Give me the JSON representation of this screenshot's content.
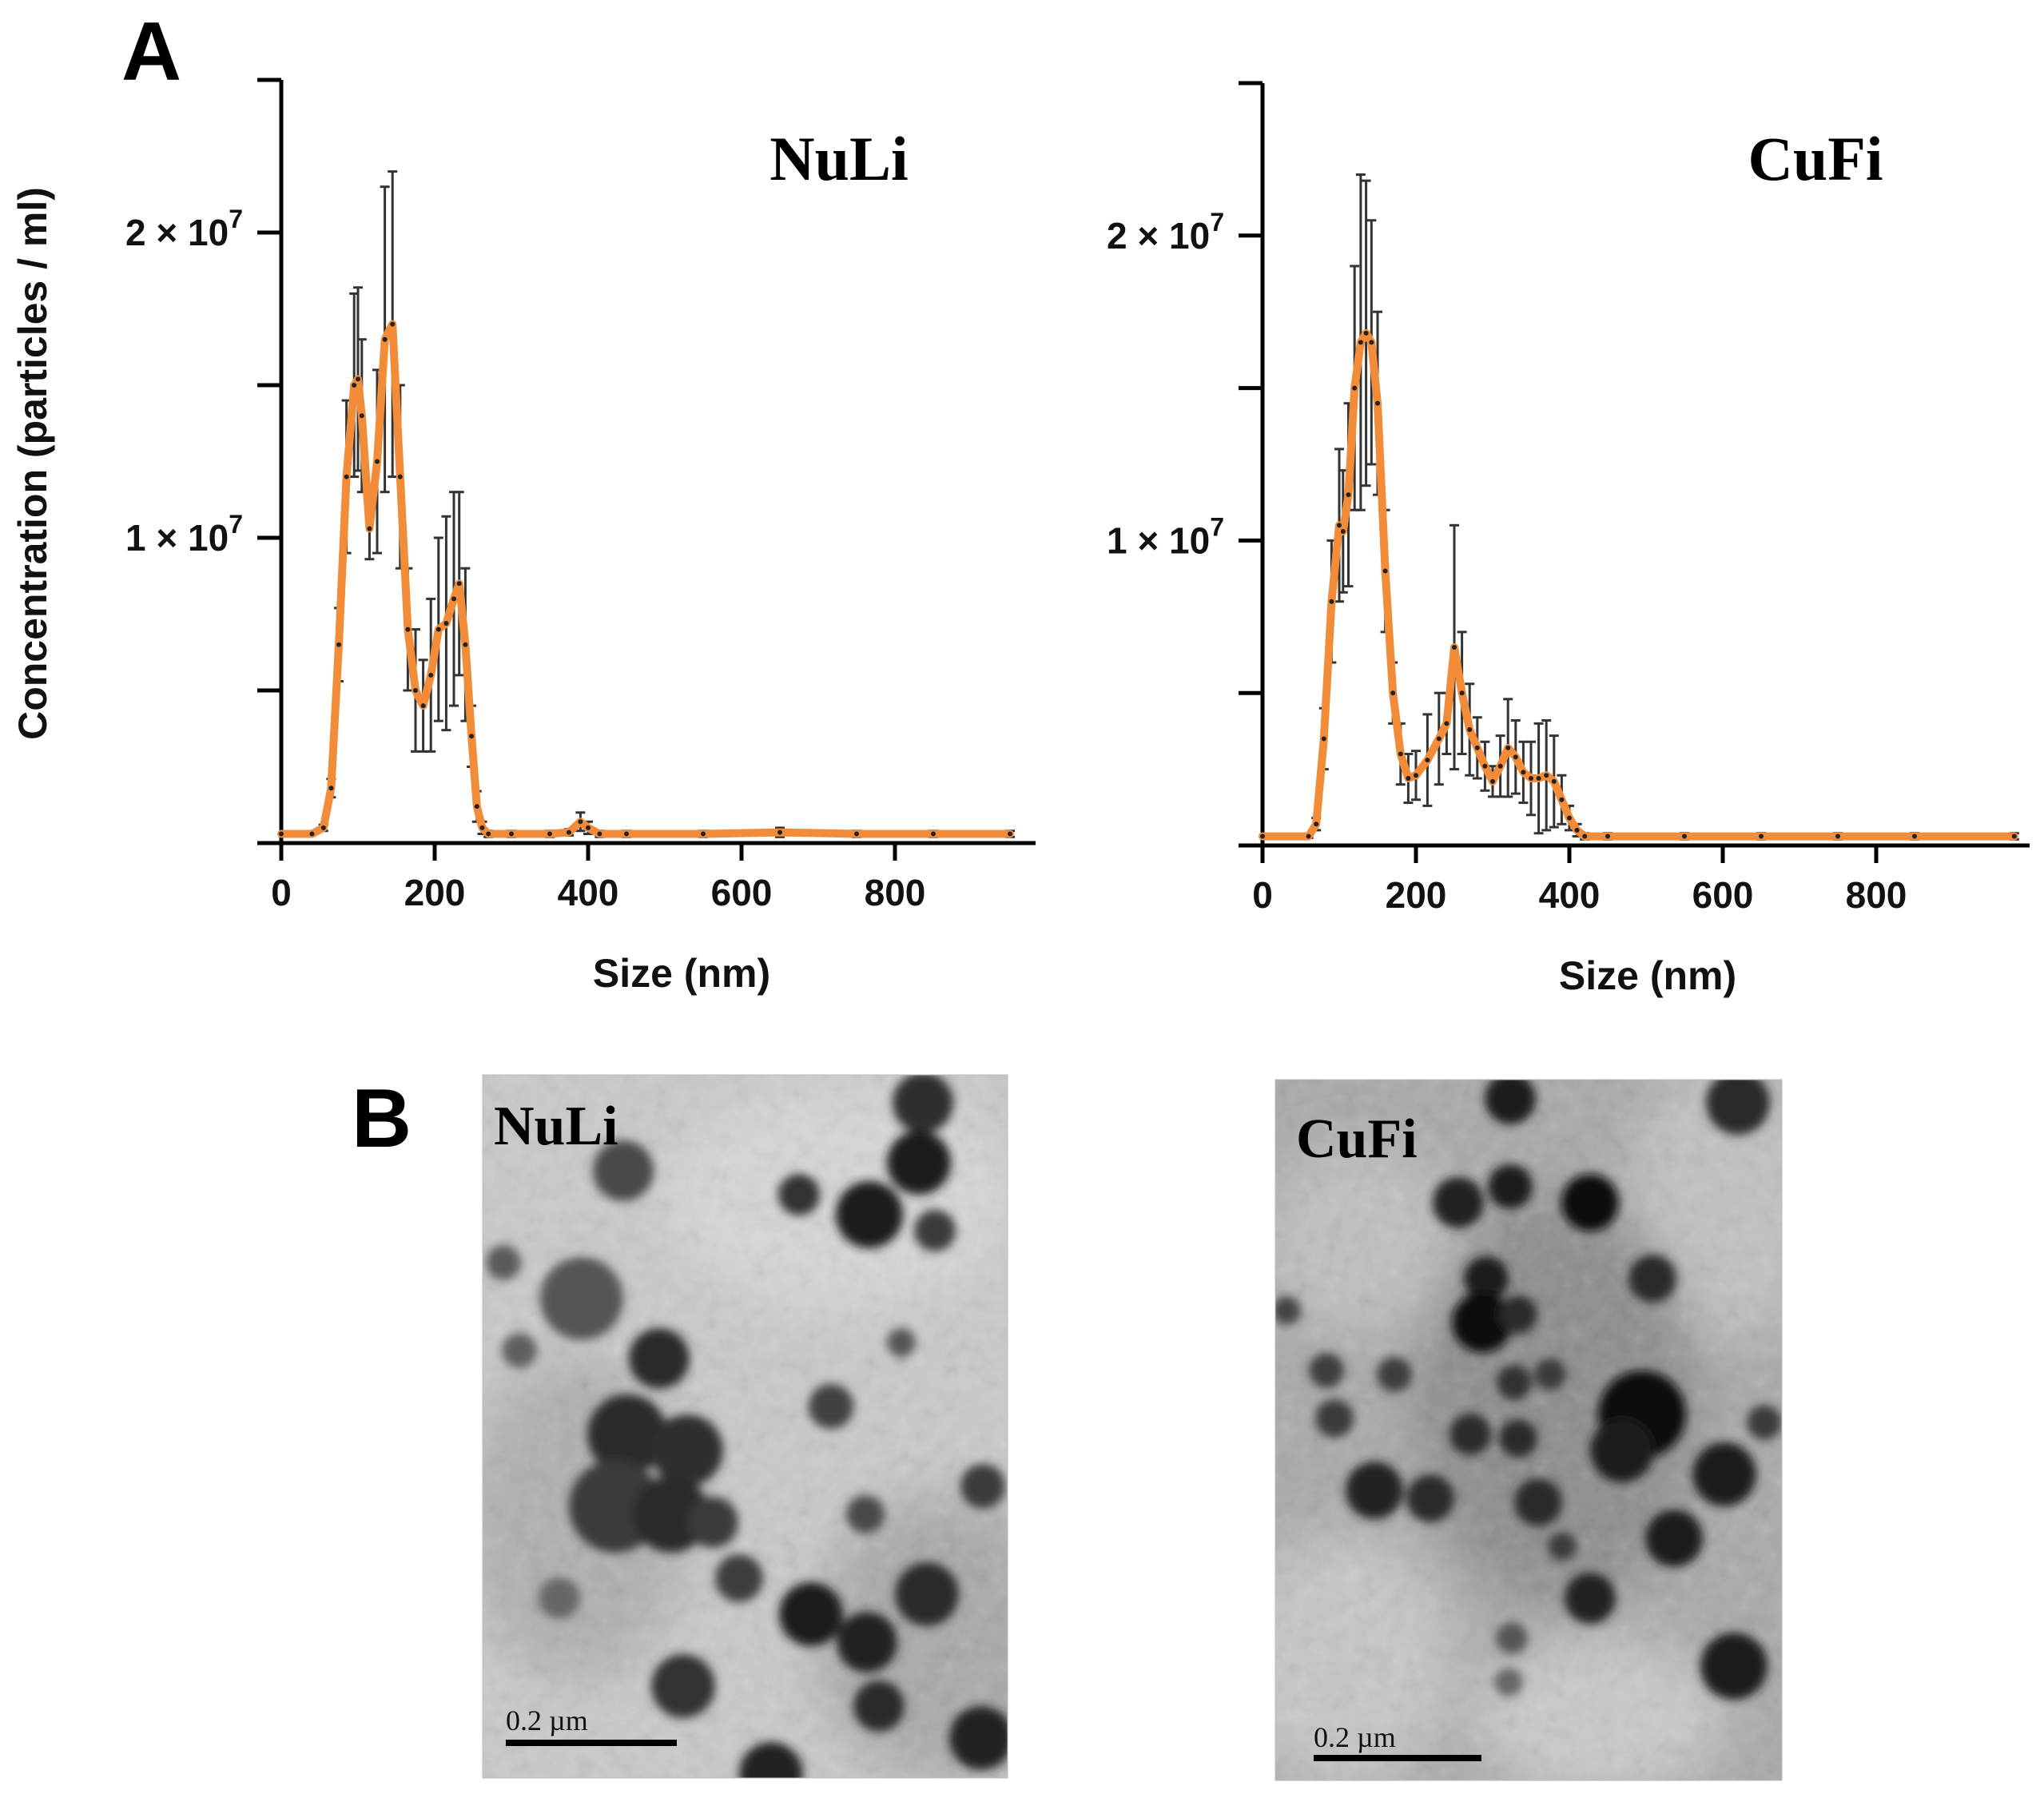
{
  "figure": {
    "panel_a_label": "A",
    "panel_b_label": "B"
  },
  "colors": {
    "mean_line": "#F28C38",
    "error_bars": "#333333",
    "axis": "#000000"
  },
  "chart_data": [
    {
      "type": "line",
      "title": "NuLi",
      "xlabel": "Size (nm)",
      "ylabel": "Concentration (particles / ml)",
      "xlim": [
        0,
        950
      ],
      "ylim": [
        0,
        25000000
      ],
      "x_ticks": [
        0,
        200,
        400,
        600,
        800
      ],
      "x_tick_labels": [
        "0",
        "200",
        "400",
        "600",
        "800"
      ],
      "y_ticks": [
        0,
        5000000,
        10000000,
        15000000,
        20000000,
        25000000
      ],
      "y_tick_labels": [
        {
          "value": 10000000,
          "mantissa": "1 × 10",
          "exponent": "7"
        },
        {
          "value": 20000000,
          "mantissa": "2 × 10",
          "exponent": "7"
        }
      ],
      "grid": false,
      "series": [
        {
          "x": [
            0,
            40,
            55,
            65,
            75,
            85,
            95,
            100,
            105,
            115,
            125,
            135,
            145,
            155,
            165,
            175,
            185,
            195,
            205,
            215,
            225,
            232,
            240,
            248,
            255,
            262,
            270,
            300,
            350,
            375,
            390,
            400,
            415,
            450,
            550,
            650,
            750,
            850,
            950
          ],
          "y": [
            300000,
            300000,
            500000,
            1800000,
            6500000,
            12000000,
            15000000,
            15200000,
            14000000,
            10300000,
            12500000,
            16500000,
            17000000,
            12000000,
            7000000,
            5000000,
            4500000,
            5500000,
            7000000,
            7200000,
            8000000,
            8500000,
            6500000,
            3500000,
            1200000,
            500000,
            300000,
            300000,
            300000,
            350000,
            700000,
            500000,
            300000,
            300000,
            300000,
            350000,
            300000,
            300000,
            300000
          ],
          "error": [
            0,
            0,
            100000,
            300000,
            1200000,
            2500000,
            3000000,
            3000000,
            2500000,
            1000000,
            3000000,
            5000000,
            5000000,
            3000000,
            2000000,
            2000000,
            1500000,
            2500000,
            3000000,
            3500000,
            3500000,
            3000000,
            2500000,
            1000000,
            500000,
            200000,
            100000,
            100000,
            100000,
            100000,
            300000,
            200000,
            100000,
            100000,
            100000,
            150000,
            100000,
            100000,
            100000
          ]
        }
      ]
    },
    {
      "type": "line",
      "title": "CuFi",
      "xlabel": "Size (nm)",
      "ylabel": "",
      "xlim": [
        0,
        980
      ],
      "ylim": [
        0,
        25000000
      ],
      "x_ticks": [
        0,
        200,
        400,
        600,
        800
      ],
      "x_tick_labels": [
        "0",
        "200",
        "400",
        "600",
        "800"
      ],
      "y_ticks": [
        0,
        5000000,
        10000000,
        15000000,
        20000000,
        25000000
      ],
      "y_tick_labels": [
        {
          "value": 10000000,
          "mantissa": "1 × 10",
          "exponent": "7"
        },
        {
          "value": 20000000,
          "mantissa": "2 × 10",
          "exponent": "7"
        }
      ],
      "grid": false,
      "series": [
        {
          "x": [
            0,
            60,
            70,
            80,
            90,
            100,
            105,
            112,
            120,
            128,
            135,
            142,
            150,
            160,
            170,
            180,
            190,
            200,
            215,
            230,
            240,
            250,
            260,
            270,
            280,
            290,
            300,
            310,
            320,
            330,
            340,
            350,
            360,
            370,
            380,
            390,
            400,
            410,
            420,
            450,
            550,
            650,
            750,
            850,
            980
          ],
          "y": [
            300000,
            300000,
            700000,
            3500000,
            8000000,
            10500000,
            10300000,
            11500000,
            15000000,
            16500000,
            16800000,
            16500000,
            14500000,
            9000000,
            5000000,
            3000000,
            2200000,
            2300000,
            2800000,
            3500000,
            4000000,
            6500000,
            5000000,
            3800000,
            3200000,
            2600000,
            2100000,
            2600000,
            3200000,
            2900000,
            2400000,
            2200000,
            2200000,
            2300000,
            2100000,
            1500000,
            900000,
            500000,
            300000,
            300000,
            300000,
            300000,
            300000,
            300000,
            300000
          ],
          "error": [
            0,
            50000,
            200000,
            1000000,
            2000000,
            2500000,
            2000000,
            3000000,
            4000000,
            5500000,
            5000000,
            4000000,
            3000000,
            2000000,
            1000000,
            1000000,
            800000,
            800000,
            1500000,
            1500000,
            1000000,
            4000000,
            2000000,
            1500000,
            1000000,
            800000,
            500000,
            1000000,
            1600000,
            1200000,
            1000000,
            1200000,
            1800000,
            1800000,
            1500000,
            800000,
            400000,
            200000,
            100000,
            100000,
            100000,
            100000,
            100000,
            100000,
            100000
          ]
        }
      ]
    }
  ],
  "tem_images": [
    {
      "label": "NuLi",
      "scale_bar": "0.2 µm"
    },
    {
      "label": "CuFi",
      "scale_bar": "0.2 µm"
    }
  ]
}
